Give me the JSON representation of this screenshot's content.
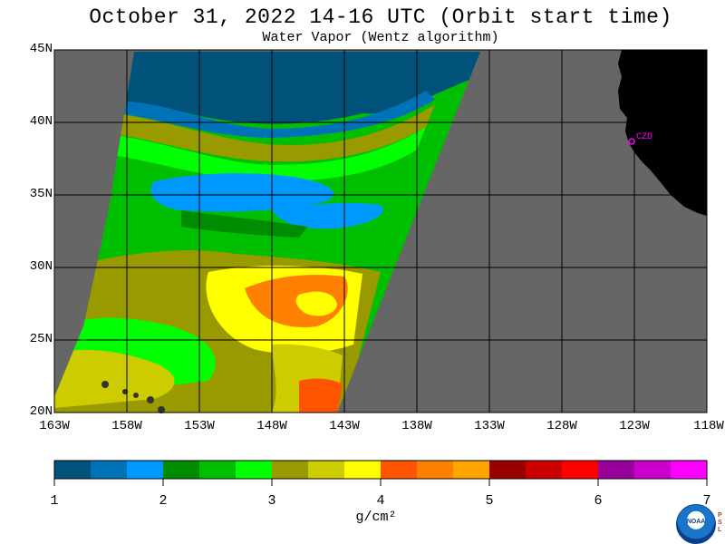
{
  "header": {
    "title": "October 31, 2022  14-16 UTC  (Orbit start time)",
    "subtitle": "Water Vapor (Wentz algorithm)"
  },
  "map": {
    "lat_labels": [
      "45N",
      "40N",
      "35N",
      "30N",
      "25N",
      "20N"
    ],
    "lon_labels": [
      "163W",
      "158W",
      "153W",
      "148W",
      "143W",
      "138W",
      "133W",
      "128W",
      "123W",
      "118W"
    ],
    "lat_range": [
      20,
      45
    ],
    "lon_range": [
      -163,
      -118
    ],
    "city_label": "CZD",
    "no_data_color": "#666666",
    "land_color": "#000000"
  },
  "colorbar": {
    "tick_labels": [
      "1",
      "2",
      "3",
      "4",
      "5",
      "6",
      "7"
    ],
    "unit": "g/cm²",
    "range": [
      1,
      7
    ],
    "colors": [
      "#00527a",
      "#0073b8",
      "#0099ff",
      "#008c00",
      "#00bf00",
      "#00ff00",
      "#999900",
      "#cccc00",
      "#ffff00",
      "#ff5500",
      "#ff7f00",
      "#ffa500",
      "#990000",
      "#cc0000",
      "#ff0000",
      "#990099",
      "#cc00cc",
      "#ff00ff"
    ]
  },
  "logo": {
    "noaa_text": "NOAA",
    "psl_text": "PSL"
  }
}
